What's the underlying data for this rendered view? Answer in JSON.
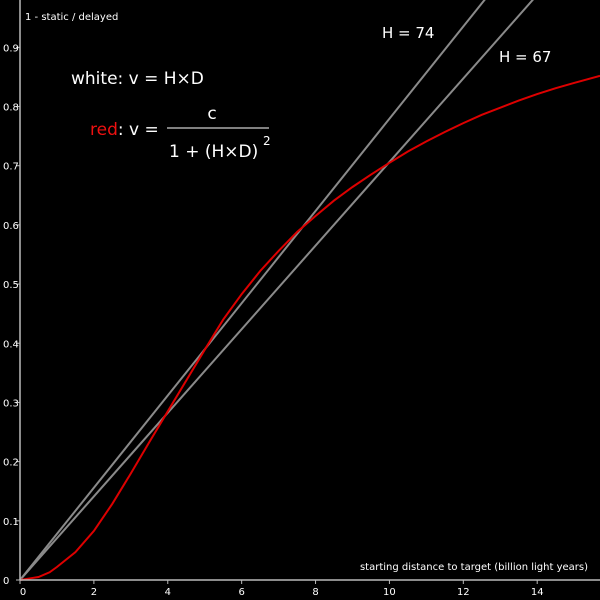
{
  "chart_data": {
    "type": "line",
    "title": "",
    "ylabel_corner": "1 - static / delayed",
    "xlabel": "starting distance to target (billion light years)",
    "xlim": [
      0,
      15.7
    ],
    "ylim": [
      0,
      0.98
    ],
    "x_ticks": [
      "0",
      "2",
      "4",
      "6",
      "8",
      "10",
      "12",
      "14"
    ],
    "y_ticks": [
      "0",
      "0.1",
      "0.2",
      "0.3",
      "0.4",
      "0.5",
      "0.6",
      "0.7",
      "0.8",
      "0.9"
    ],
    "grid": false,
    "colors": {
      "background": "#000000",
      "axis": "#bbbbbb",
      "white_line": "#8a8a8a",
      "red_line": "#dd0000",
      "text": "#ffffff"
    },
    "lines": [
      {
        "label": "H = 74",
        "points": [
          [
            0,
            0
          ],
          [
            12.83,
            1.0
          ]
        ]
      },
      {
        "label": "H = 67",
        "points": [
          [
            0,
            0
          ],
          [
            14.16,
            1.0
          ]
        ]
      }
    ],
    "series": [
      {
        "color": "red",
        "points": [
          [
            0.0,
            0.0
          ],
          [
            0.3,
            0.003
          ],
          [
            0.5,
            0.005
          ],
          [
            0.8,
            0.013
          ],
          [
            1.0,
            0.022
          ],
          [
            1.5,
            0.047
          ],
          [
            2.0,
            0.083
          ],
          [
            2.5,
            0.129
          ],
          [
            3.0,
            0.18
          ],
          [
            3.5,
            0.233
          ],
          [
            4.0,
            0.285
          ],
          [
            4.5,
            0.337
          ],
          [
            5.0,
            0.389
          ],
          [
            5.5,
            0.44
          ],
          [
            6.0,
            0.483
          ],
          [
            6.5,
            0.522
          ],
          [
            7.0,
            0.556
          ],
          [
            7.5,
            0.588
          ],
          [
            8.0,
            0.615
          ],
          [
            8.5,
            0.641
          ],
          [
            9.0,
            0.664
          ],
          [
            9.5,
            0.685
          ],
          [
            10.0,
            0.705
          ],
          [
            10.5,
            0.724
          ],
          [
            11.0,
            0.741
          ],
          [
            11.5,
            0.757
          ],
          [
            12.0,
            0.772
          ],
          [
            12.5,
            0.786
          ],
          [
            13.0,
            0.798
          ],
          [
            13.5,
            0.81
          ],
          [
            14.0,
            0.821
          ],
          [
            14.5,
            0.831
          ],
          [
            15.0,
            0.84
          ],
          [
            15.7,
            0.852
          ]
        ]
      }
    ],
    "legend": {
      "white_word": "white",
      "white_eq": ": v = H×D",
      "red_word": "red",
      "red_eq": ": v = ",
      "numerator": "c",
      "denominator": "1 + (H×D)",
      "exponent": "2"
    }
  }
}
